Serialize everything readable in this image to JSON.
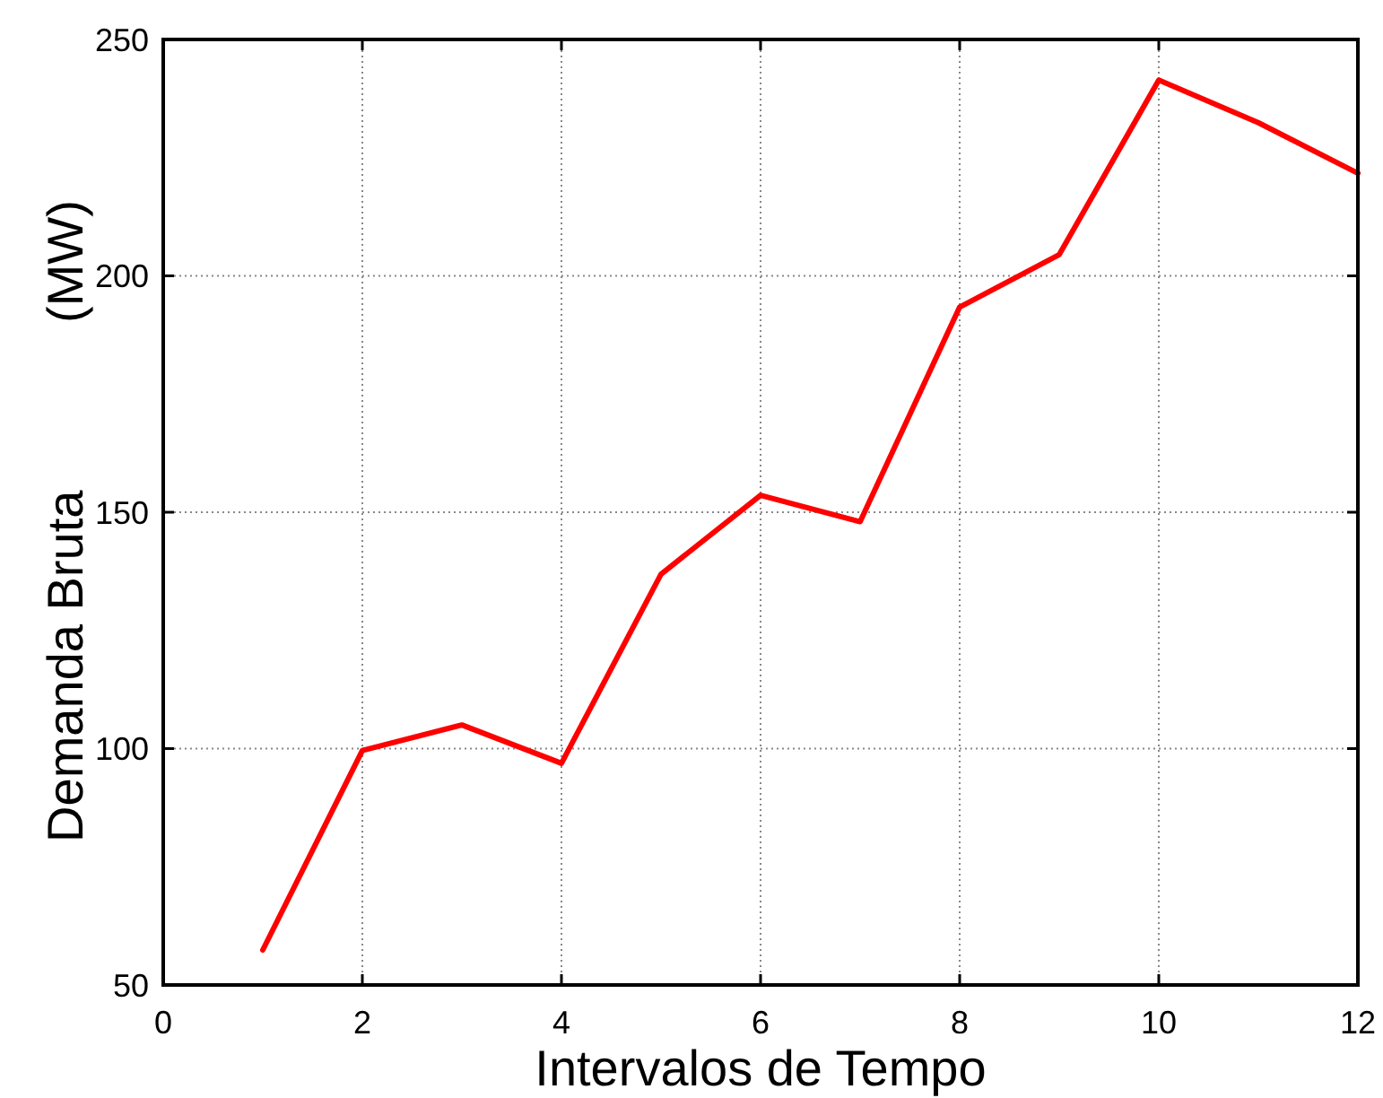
{
  "chart_data": {
    "type": "line",
    "xlabel": "Intervalos de Tempo",
    "ylabel": "Demanda Bruta            (MW)",
    "x": [
      1,
      2,
      3,
      4,
      5,
      6,
      7,
      8,
      9,
      10,
      11,
      12
    ],
    "series": [
      {
        "color": "#ff0000",
        "values": [
          57.4,
          99.6,
          105,
          96.9,
          136.9,
          153.6,
          148,
          193.4,
          204.5,
          241.4,
          232.4,
          221.7
        ]
      }
    ],
    "xlim": [
      0,
      12
    ],
    "ylim": [
      50,
      250
    ],
    "xticks": [
      0,
      2,
      4,
      6,
      8,
      10,
      12
    ],
    "yticks": [
      50,
      100,
      150,
      200,
      250
    ],
    "grid": true,
    "line_style": "solid"
  }
}
